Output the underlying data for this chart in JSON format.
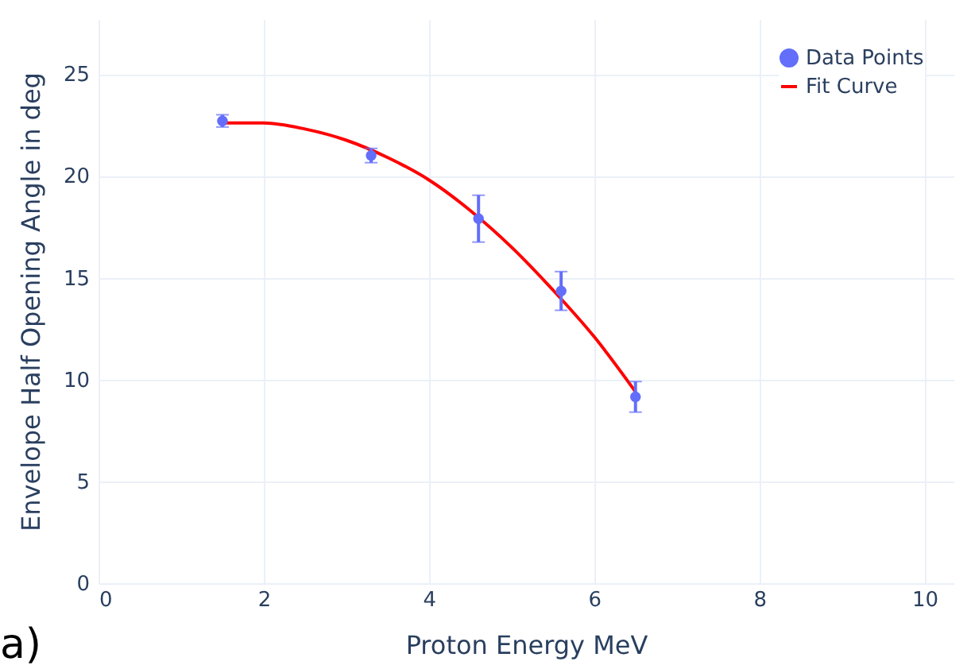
{
  "chart_data": {
    "type": "scatter",
    "xlabel": "Proton Energy MeV",
    "ylabel": "Envelope Half Opening Angle in deg",
    "annotations": [
      "a)"
    ],
    "xlim": [
      0,
      10.35
    ],
    "ylim": [
      0,
      27.7
    ],
    "xticks": [
      0,
      2,
      4,
      6,
      8,
      10
    ],
    "yticks": [
      0,
      5,
      10,
      15,
      20,
      25
    ],
    "grid": true,
    "legend": "top right",
    "series": [
      {
        "name": "Data Points",
        "marker": "circle",
        "color": "#636efa",
        "x": [
          1.5,
          3.3,
          4.6,
          5.6,
          6.5
        ],
        "values": [
          22.7,
          21.0,
          17.9,
          14.35,
          9.15
        ],
        "errors": [
          0.3,
          0.35,
          1.15,
          0.95,
          0.75
        ]
      },
      {
        "name": "Fit Curve",
        "type": "line",
        "color": "#ff0000",
        "line_style": "solid",
        "x": [
          1.5,
          2,
          2.5,
          3,
          3.5,
          4,
          4.5,
          5,
          5.5,
          6,
          6.5
        ],
        "values": [
          22.6,
          22.6,
          22.3,
          21.75,
          20.9,
          19.8,
          18.3,
          16.5,
          14.4,
          12.1,
          9.4
        ]
      }
    ]
  }
}
